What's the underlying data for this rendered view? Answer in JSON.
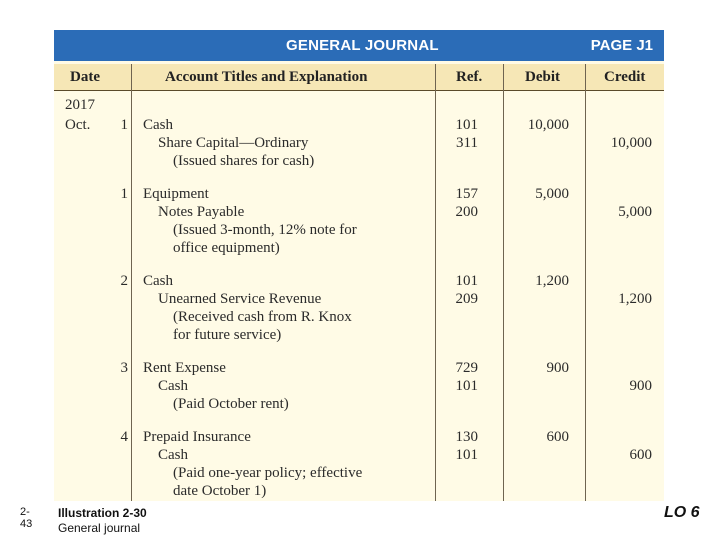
{
  "banner": {
    "title": "GENERAL JOURNAL",
    "page": "PAGE J1"
  },
  "headers": {
    "date": "Date",
    "account": "Account Titles and Explanation",
    "ref": "Ref.",
    "debit": "Debit",
    "credit": "Credit"
  },
  "year": "2017",
  "month": "Oct.",
  "entries": [
    {
      "day": "1",
      "debit_account": "Cash",
      "credit_account": "Share Capital—Ordinary",
      "explanation": [
        "(Issued shares for cash)"
      ],
      "debit_ref": "101",
      "credit_ref": "311",
      "debit_amount": "10,000",
      "credit_amount": "10,000"
    },
    {
      "day": "1",
      "debit_account": "Equipment",
      "credit_account": "Notes Payable",
      "explanation": [
        "(Issued 3-month, 12% note for",
        "office equipment)"
      ],
      "debit_ref": "157",
      "credit_ref": "200",
      "debit_amount": "5,000",
      "credit_amount": "5,000"
    },
    {
      "day": "2",
      "debit_account": "Cash",
      "credit_account": "Unearned Service Revenue",
      "explanation": [
        "(Received cash from R. Knox",
        "for future service)"
      ],
      "debit_ref": "101",
      "credit_ref": "209",
      "debit_amount": "1,200",
      "credit_amount": "1,200"
    },
    {
      "day": "3",
      "debit_account": "Rent Expense",
      "credit_account": "Cash",
      "explanation": [
        "(Paid October rent)"
      ],
      "debit_ref": "729",
      "credit_ref": "101",
      "debit_amount": "900",
      "credit_amount": "900"
    },
    {
      "day": "4",
      "debit_account": "Prepaid Insurance",
      "credit_account": "Cash",
      "explanation": [
        "(Paid one-year policy; effective",
        "date October 1)"
      ],
      "debit_ref": "130",
      "credit_ref": "101",
      "debit_amount": "600",
      "credit_amount": "600"
    }
  ],
  "footer": {
    "slide_number": "2-43",
    "illustration": "Illustration 2-30",
    "caption": "General journal",
    "learning_objective": "LO 6"
  },
  "colors": {
    "banner": "#2b6cb7",
    "header_band": "#f6e7b6",
    "paper": "#fffbe6"
  }
}
